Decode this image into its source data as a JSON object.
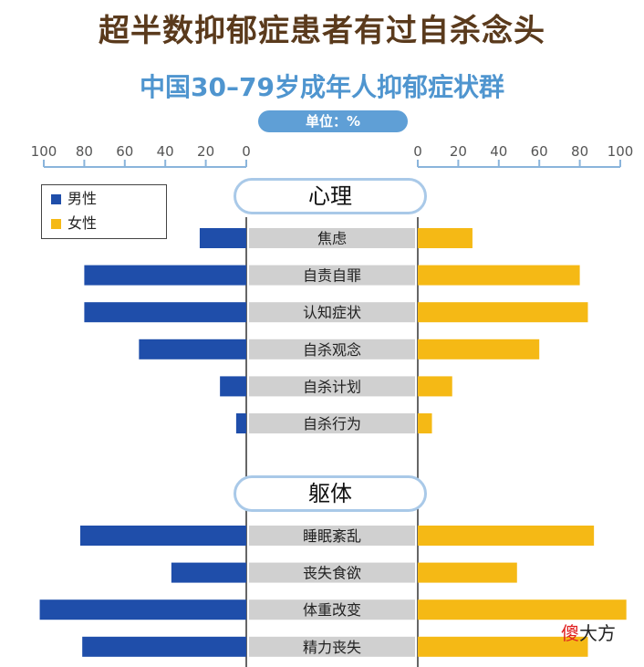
{
  "title": "超半数抑郁症患者有过自杀念头",
  "subtitle": "中国30–79岁成年人抑郁症状群",
  "unit_label": "单位：%",
  "legend": {
    "male": "男性",
    "female": "女性"
  },
  "colors": {
    "male": "#1f4eaa",
    "female": "#f5b915",
    "category_bg": "#d0d0d0",
    "axis": "#8ab4db"
  },
  "chart_data": {
    "type": "bar",
    "orientation": "horizontal-butterfly",
    "title": "超半数抑郁症患者有过自杀念头",
    "subtitle": "中国30–79岁成年人抑郁症状群",
    "unit": "单位：%",
    "xlim": [
      0,
      100
    ],
    "x_ticks": [
      0,
      20,
      40,
      60,
      80,
      100
    ],
    "groups": [
      {
        "name": "心理",
        "categories": [
          "焦虑",
          "自责自罪",
          "认知症状",
          "自杀观念",
          "自杀计划",
          "自杀行为"
        ],
        "male": [
          23,
          80,
          80,
          53,
          13,
          5
        ],
        "female": [
          27,
          80,
          84,
          60,
          17,
          7
        ]
      },
      {
        "name": "躯体",
        "categories": [
          "睡眠紊乱",
          "丧失食欲",
          "体重改变",
          "精力丧失"
        ],
        "male": [
          82,
          37,
          102,
          81
        ],
        "female": [
          87,
          49,
          103,
          84
        ]
      }
    ]
  },
  "watermark": {
    "first": "傻",
    "rest": "大方"
  }
}
